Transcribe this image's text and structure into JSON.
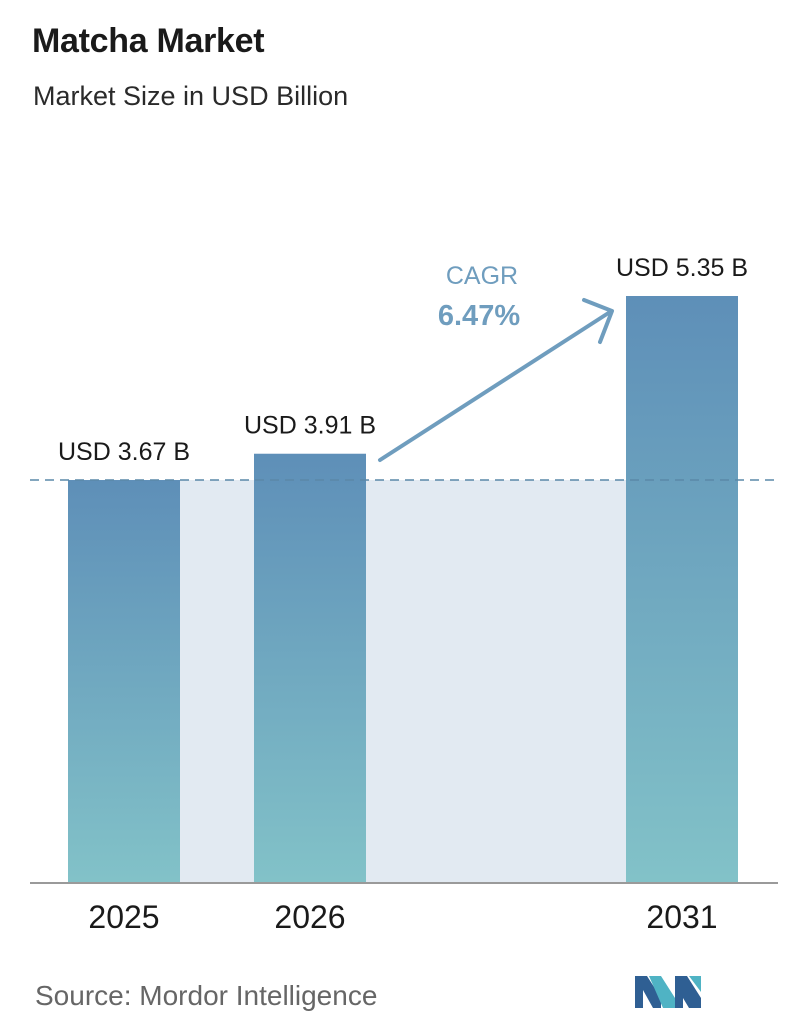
{
  "header": {
    "title": "Matcha Market",
    "subtitle": "Market Size in USD Billion"
  },
  "chart_data": {
    "type": "bar",
    "title": "Matcha Market",
    "subtitle": "Market Size in USD Billion",
    "categories": [
      "2025",
      "2026",
      "2031"
    ],
    "values": [
      3.67,
      3.91,
      5.35
    ],
    "data_labels": [
      "USD 3.67 B",
      "USD 3.91 B",
      "USD 5.35 B"
    ],
    "unit": "USD Billion",
    "ylim": [
      0,
      5.35
    ],
    "grid": false,
    "reference_line": {
      "value": 3.67,
      "style": "dashed"
    },
    "annotation": {
      "label": "CAGR",
      "value": "6.47%",
      "from": "2026",
      "to": "2031"
    },
    "colors": {
      "bar_top": "#5e8fb8",
      "bar_bottom": "#82c2c8",
      "band": "#e2eaf2",
      "reference_line": "#5a88a8",
      "arrow": "#6f9dbe",
      "axis": "#9a9a9a"
    }
  },
  "footer": {
    "source": "Source:  Mordor Intelligence",
    "logo_icon": "mordor-intelligence-logo-icon"
  }
}
